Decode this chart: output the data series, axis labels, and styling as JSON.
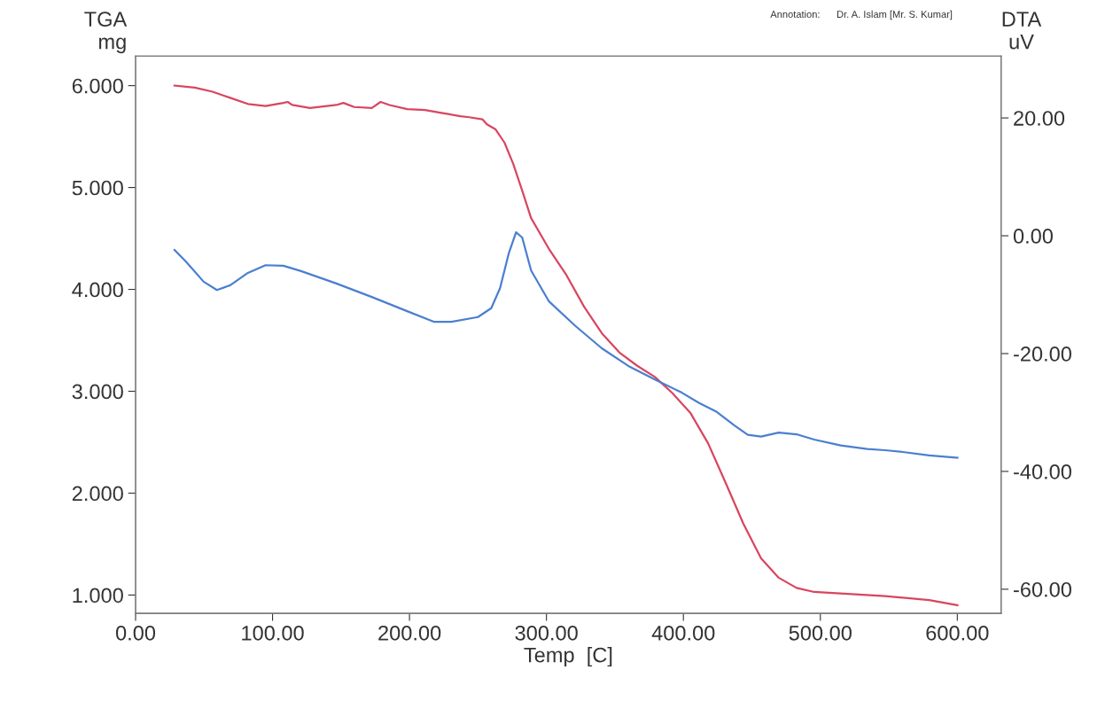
{
  "chart_data": {
    "type": "line",
    "xlabel": "Temp  [C]",
    "ylabel": "TGA\nmg",
    "y2label": "DTA\nuV",
    "annotations": [
      "Annotation:      Dr. A. Islam [Mr. S. Kumar]"
    ],
    "xlim": [
      0,
      632
    ],
    "xticks": [
      {
        "value": 0,
        "label": "0.00"
      },
      {
        "value": 100,
        "label": "100.00"
      },
      {
        "value": 200,
        "label": "200.00"
      },
      {
        "value": 300,
        "label": "300.00"
      },
      {
        "value": 400,
        "label": "400.00"
      },
      {
        "value": 500,
        "label": "500.00"
      },
      {
        "value": 600,
        "label": "600.00"
      }
    ],
    "ylim": [
      0.82,
      6.29
    ],
    "yticks": [
      {
        "value": 1,
        "label": "1.000"
      },
      {
        "value": 2,
        "label": "2.000"
      },
      {
        "value": 3,
        "label": "3.000"
      },
      {
        "value": 4,
        "label": "4.000"
      },
      {
        "value": 5,
        "label": "5.000"
      },
      {
        "value": 6,
        "label": "6.000"
      }
    ],
    "y2lim": [
      -64.1,
      30.5
    ],
    "y2ticks": [
      {
        "value": -60,
        "label": "-60.00"
      },
      {
        "value": -40,
        "label": "-40.00"
      },
      {
        "value": -20,
        "label": "-20.00"
      },
      {
        "value": 0,
        "label": "0.00"
      },
      {
        "value": 20,
        "label": "20.00"
      }
    ],
    "grid": false,
    "legend": false,
    "series": [
      {
        "color": "#d9455f",
        "x": [
          28.4,
          43.3,
          56.2,
          69.1,
          82.0,
          94.9,
          107.9,
          111.1,
          114.3,
          127.3,
          146.6,
          151.8,
          159.6,
          172.5,
          178.9,
          185.4,
          198.3,
          211.2,
          224.2,
          237.1,
          243.5,
          253.2,
          256.5,
          262.9,
          269.4,
          275.8,
          282.3,
          288.8,
          301.7,
          314.6,
          327.5,
          340.4,
          353.3,
          366.3,
          379.2,
          392.1,
          405.0,
          418.0,
          430.9,
          443.8,
          456.7,
          469.6,
          482.6,
          495.5,
          547.2,
          579.5,
          600.1
        ],
        "values": [
          6.0,
          5.98,
          5.94,
          5.88,
          5.82,
          5.8,
          5.83,
          5.84,
          5.81,
          5.78,
          5.81,
          5.83,
          5.79,
          5.78,
          5.84,
          5.81,
          5.77,
          5.76,
          5.73,
          5.7,
          5.69,
          5.67,
          5.62,
          5.57,
          5.44,
          5.23,
          4.97,
          4.7,
          4.4,
          4.14,
          3.83,
          3.57,
          3.38,
          3.25,
          3.14,
          2.98,
          2.79,
          2.49,
          2.1,
          1.7,
          1.36,
          1.17,
          1.07,
          1.03,
          0.99,
          0.95,
          0.9
        ]
      },
      {
        "color": "#4a7fd0",
        "axis": "y2",
        "x": [
          28.4,
          36.8,
          49.7,
          59.4,
          69.1,
          82.0,
          94.9,
          107.9,
          120.8,
          146.6,
          172.5,
          198.3,
          217.7,
          230.6,
          250.0,
          259.7,
          266.1,
          272.6,
          277.8,
          282.3,
          288.8,
          301.7,
          321.1,
          340.4,
          359.8,
          379.2,
          398.6,
          411.5,
          424.4,
          437.3,
          447.0,
          456.7,
          469.6,
          482.6,
          495.5,
          514.9,
          534.2,
          547.2,
          560.1,
          579.5,
          600.1
        ],
        "values": [
          -2.4,
          -4.4,
          -7.8,
          -9.2,
          -8.4,
          -6.3,
          -5.0,
          -5.1,
          -6.0,
          -8.1,
          -10.4,
          -12.8,
          -14.6,
          -14.6,
          -13.8,
          -12.3,
          -8.9,
          -2.9,
          0.6,
          -0.3,
          -5.9,
          -11.1,
          -15.3,
          -19.1,
          -22.1,
          -24.4,
          -26.6,
          -28.4,
          -29.9,
          -32.2,
          -33.8,
          -34.1,
          -33.4,
          -33.7,
          -34.6,
          -35.6,
          -36.2,
          -36.4,
          -36.7,
          -37.3,
          -37.7
        ]
      }
    ]
  }
}
